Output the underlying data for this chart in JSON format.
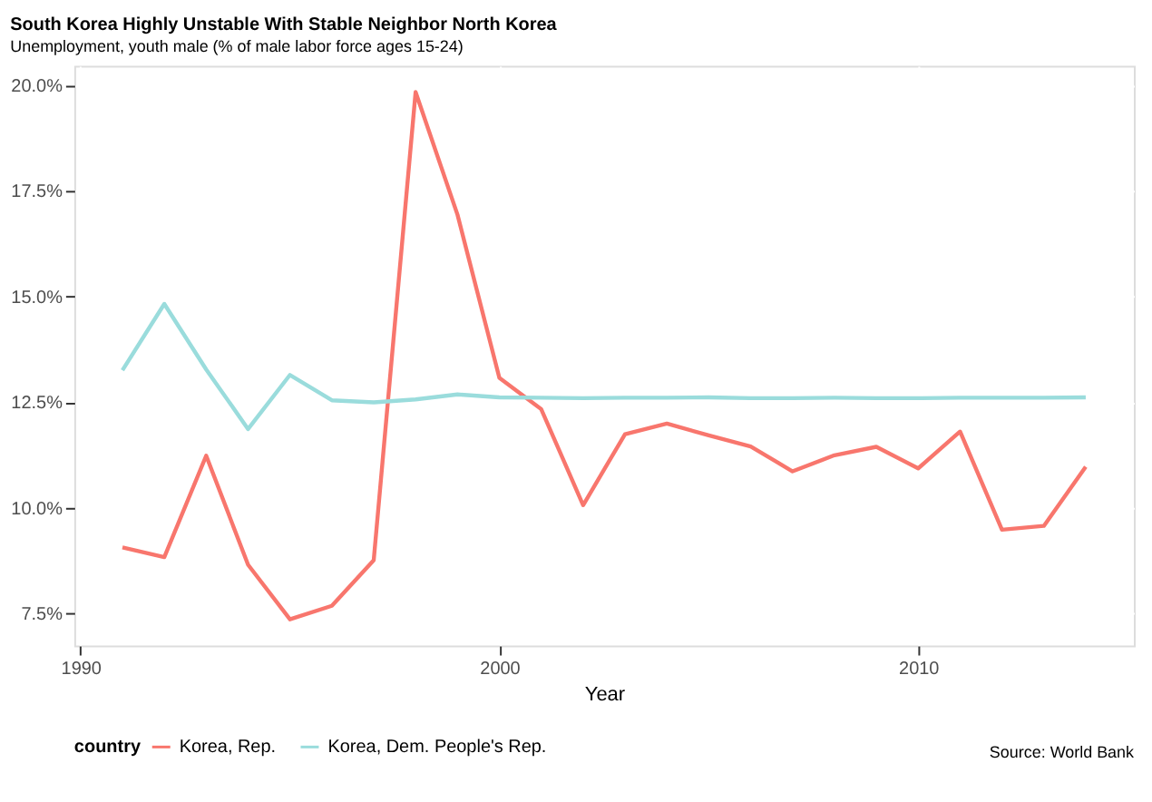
{
  "chart_data": {
    "type": "line",
    "title": "South Korea Highly Unstable With Stable Neighbor North Korea",
    "subtitle": "Unemployment, youth male (% of male labor force ages 15-24)",
    "xlabel": "Year",
    "legend_title": "country",
    "annotations": [
      "Source: World Bank"
    ],
    "x": [
      1991,
      1992,
      1993,
      1994,
      1995,
      1996,
      1997,
      1998,
      1999,
      2000,
      2001,
      2002,
      2003,
      2004,
      2005,
      2006,
      2007,
      2008,
      2009,
      2010,
      2011,
      2012,
      2013,
      2014
    ],
    "series": [
      {
        "name": "Korea, Rep.",
        "color": "#f8766d",
        "values": [
          9.06,
          8.83,
          11.23,
          8.65,
          7.36,
          7.68,
          8.76,
          19.83,
          16.93,
          13.07,
          12.33,
          10.06,
          11.74,
          11.99,
          11.71,
          11.45,
          10.86,
          11.24,
          11.44,
          10.93,
          11.8,
          9.48,
          9.57,
          10.97
        ]
      },
      {
        "name": "Korea, Dem. People's Rep.",
        "color": "#9adcdc",
        "values": [
          13.25,
          14.82,
          13.27,
          11.86,
          13.14,
          12.54,
          12.49,
          12.56,
          12.68,
          12.61,
          12.6,
          12.59,
          12.6,
          12.6,
          12.61,
          12.59,
          12.59,
          12.6,
          12.59,
          12.59,
          12.6,
          12.6,
          12.6,
          12.61
        ]
      }
    ],
    "xlim": [
      1989.85,
      2015.15
    ],
    "xticks": [
      1990,
      2000,
      2010
    ],
    "ylim": [
      6.74,
      20.45
    ],
    "yticks": [
      {
        "value": 7.5,
        "label": "7.5%"
      },
      {
        "value": 10,
        "label": "10.0%"
      },
      {
        "value": 12.5,
        "label": "12.5%"
      },
      {
        "value": 15,
        "label": "15.0%"
      },
      {
        "value": 17.5,
        "label": "17.5%"
      },
      {
        "value": 20,
        "label": "20.0%"
      }
    ],
    "grid": true,
    "legend": "bottom",
    "marker": "none",
    "line_style": "solid"
  }
}
